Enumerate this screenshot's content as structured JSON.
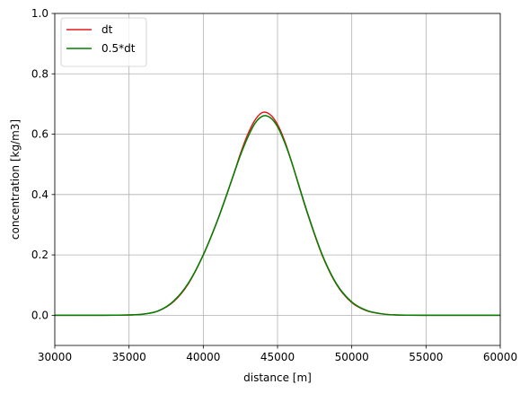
{
  "chart_data": {
    "type": "line",
    "title": "",
    "xlabel": "distance [m]",
    "ylabel": "concentration [kg/m3]",
    "xlim": [
      30000,
      60000
    ],
    "ylim": [
      -0.1,
      1.0
    ],
    "xticks": [
      30000,
      35000,
      40000,
      45000,
      50000,
      55000,
      60000
    ],
    "xtick_labels": [
      "30000",
      "35000",
      "40000",
      "45000",
      "50000",
      "55000",
      "60000"
    ],
    "yticks": [
      0.0,
      0.2,
      0.4,
      0.6,
      0.8,
      1.0
    ],
    "ytick_labels": [
      "0.0",
      "0.2",
      "0.4",
      "0.6",
      "0.8",
      "1.0"
    ],
    "grid": true,
    "legend_position": "top-left",
    "series": [
      {
        "name": "dt",
        "color": "#e41a1c",
        "x": [
          30000,
          33000,
          35000,
          36000,
          37000,
          38000,
          39000,
          40000,
          41000,
          42000,
          42500,
          43000,
          43500,
          44000,
          44500,
          45000,
          45500,
          46000,
          47000,
          48000,
          49000,
          50000,
          51000,
          52000,
          53000,
          55000,
          60000
        ],
        "y": [
          0.0,
          0.0,
          0.001,
          0.004,
          0.015,
          0.045,
          0.105,
          0.2,
          0.32,
          0.46,
          0.535,
          0.6,
          0.648,
          0.672,
          0.665,
          0.632,
          0.575,
          0.5,
          0.34,
          0.2,
          0.1,
          0.042,
          0.015,
          0.005,
          0.001,
          0.0,
          0.0
        ]
      },
      {
        "name": "0.5*dt",
        "color": "#008000",
        "x": [
          30000,
          33000,
          35000,
          36000,
          37000,
          38000,
          39000,
          40000,
          41000,
          42000,
          42500,
          43000,
          43500,
          44000,
          44500,
          45000,
          45500,
          46000,
          47000,
          48000,
          49000,
          50000,
          51000,
          52000,
          53000,
          55000,
          60000
        ],
        "y": [
          0.0,
          0.0,
          0.001,
          0.004,
          0.015,
          0.047,
          0.107,
          0.2,
          0.32,
          0.46,
          0.53,
          0.59,
          0.637,
          0.66,
          0.655,
          0.625,
          0.57,
          0.5,
          0.342,
          0.202,
          0.102,
          0.044,
          0.016,
          0.005,
          0.001,
          0.0,
          0.0
        ]
      }
    ]
  }
}
